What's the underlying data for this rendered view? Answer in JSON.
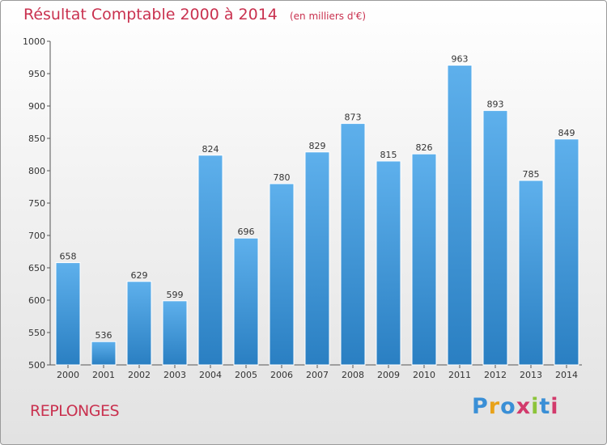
{
  "chart_data": {
    "type": "bar",
    "title": "Résultat Comptable 2000 à 2014",
    "subtitle": "(en milliers d'€)",
    "categories": [
      "2000",
      "2001",
      "2002",
      "2003",
      "2004",
      "2005",
      "2006",
      "2007",
      "2008",
      "2009",
      "2010",
      "2011",
      "2012",
      "2013",
      "2014"
    ],
    "values": [
      658,
      536,
      629,
      599,
      824,
      696,
      780,
      829,
      873,
      815,
      826,
      963,
      893,
      785,
      849
    ],
    "ylim": [
      500,
      1000
    ],
    "yticks": [
      500,
      550,
      600,
      650,
      700,
      750,
      800,
      850,
      900,
      950,
      1000
    ],
    "grid": false,
    "colors": {
      "bar_top": "#5eb0ec",
      "bar_bottom": "#2a7fc2",
      "title": "#c9314f"
    }
  },
  "place_name": "REPLONGES",
  "logo": {
    "text": "Proxiti",
    "letter_colors": [
      "#3a8fd6",
      "#e8a21a",
      "#3a8fd6",
      "#d23a6c",
      "#8cc43a",
      "#3a8fd6",
      "#d23a6c"
    ]
  }
}
